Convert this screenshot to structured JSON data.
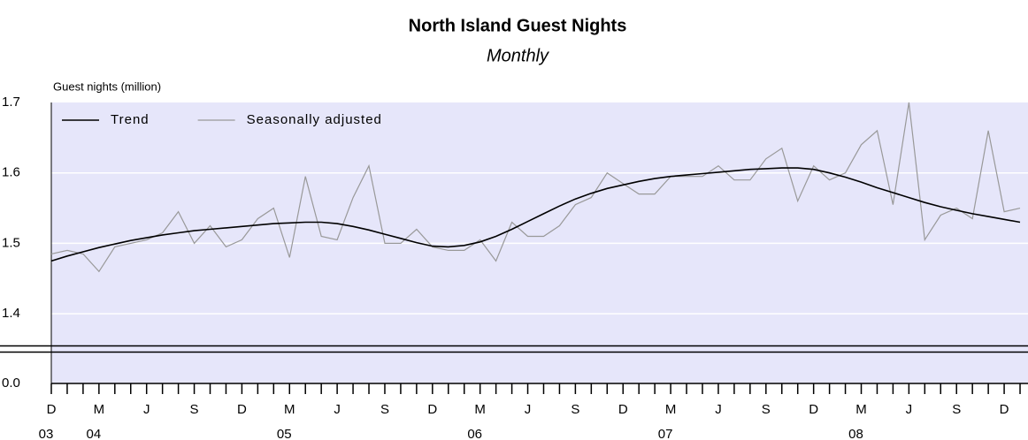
{
  "chart_data": {
    "type": "line",
    "title": "North Island Guest Nights",
    "subtitle": "Monthly",
    "y_label": "Guest nights (million)",
    "categories": [
      "D",
      null,
      null,
      "M",
      null,
      null,
      "J",
      null,
      null,
      "S",
      null,
      null,
      "D",
      null,
      null,
      "M",
      null,
      null,
      "J",
      null,
      null,
      "S",
      null,
      null,
      "D",
      null,
      null,
      "M",
      null,
      null,
      "J",
      null,
      null,
      "S",
      null,
      null,
      "D",
      null,
      null,
      "M",
      null,
      null,
      "J",
      null,
      null,
      "S",
      null,
      null,
      "D",
      null,
      null,
      "M",
      null,
      null,
      "J",
      null,
      null,
      "S",
      null,
      null,
      "D",
      null
    ],
    "years": [
      "03",
      null,
      null,
      "04",
      null,
      null,
      null,
      null,
      null,
      null,
      null,
      null,
      null,
      null,
      null,
      "05",
      null,
      null,
      null,
      null,
      null,
      null,
      null,
      null,
      null,
      null,
      null,
      "06",
      null,
      null,
      null,
      null,
      null,
      null,
      null,
      null,
      null,
      null,
      null,
      "07",
      null,
      null,
      null,
      null,
      null,
      null,
      null,
      null,
      null,
      null,
      null,
      "08",
      null,
      null,
      null,
      null,
      null,
      null,
      null,
      null,
      null,
      null
    ],
    "series": [
      {
        "name": "Trend",
        "color": "#000000",
        "width": 1.6,
        "values": [
          1.475,
          1.482,
          1.488,
          1.494,
          1.499,
          1.504,
          1.508,
          1.512,
          1.515,
          1.518,
          1.52,
          1.522,
          1.524,
          1.526,
          1.528,
          1.529,
          1.53,
          1.53,
          1.528,
          1.524,
          1.519,
          1.513,
          1.507,
          1.501,
          1.496,
          1.495,
          1.497,
          1.502,
          1.51,
          1.52,
          1.531,
          1.542,
          1.553,
          1.563,
          1.571,
          1.578,
          1.583,
          1.588,
          1.592,
          1.595,
          1.597,
          1.599,
          1.601,
          1.603,
          1.605,
          1.606,
          1.607,
          1.607,
          1.605,
          1.6,
          1.594,
          1.587,
          1.579,
          1.572,
          1.565,
          1.558,
          1.552,
          1.547,
          1.542,
          1.538,
          1.534,
          1.53
        ]
      },
      {
        "name": "Seasonally adjusted",
        "color": "#999999",
        "width": 1.2,
        "values": [
          1.485,
          1.49,
          1.485,
          1.46,
          1.495,
          1.5,
          1.505,
          1.515,
          1.545,
          1.5,
          1.525,
          1.495,
          1.505,
          1.535,
          1.55,
          1.48,
          1.595,
          1.51,
          1.505,
          1.565,
          1.61,
          1.5,
          1.5,
          1.52,
          1.495,
          1.49,
          1.49,
          1.505,
          1.475,
          1.53,
          1.51,
          1.51,
          1.525,
          1.555,
          1.565,
          1.6,
          1.585,
          1.57,
          1.57,
          1.595,
          1.595,
          1.595,
          1.61,
          1.59,
          1.59,
          1.62,
          1.635,
          1.56,
          1.61,
          1.59,
          1.6,
          1.64,
          1.66,
          1.555,
          1.7,
          1.505,
          1.54,
          1.55,
          1.535,
          1.66,
          1.545,
          1.55
        ]
      }
    ],
    "ylim": [
      0,
      1.7
    ],
    "ybreak": [
      0,
      1.35
    ],
    "yticks": [
      {
        "value": 0,
        "label": "0.0"
      },
      1.4,
      1.5,
      1.6,
      1.7
    ],
    "grid": true,
    "legend": "top-left"
  }
}
